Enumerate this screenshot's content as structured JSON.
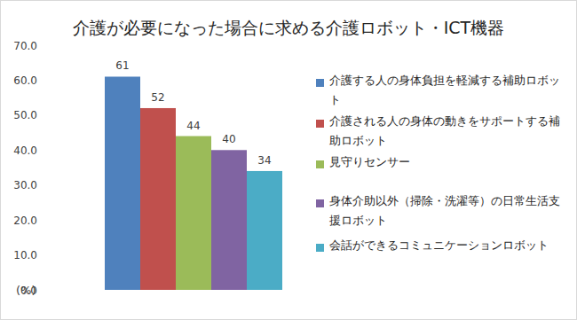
{
  "chart_data": {
    "type": "bar",
    "title": "介護が必要になった場合に求める介護ロボット・ICT機器",
    "y_label": "(%)",
    "categories": [
      "介護する人の身体負担を軽減する補助ロボット",
      "介護される人の身体の動きをサポートする補助ロボット",
      "見守りセンサー",
      "身体介助以外（掃除・洗濯等）の日常生活支援ロボット",
      "会話ができるコミュニケーションロボット"
    ],
    "values": [
      61,
      52,
      44,
      40,
      34
    ],
    "colors": [
      "#4f81bd",
      "#c0504d",
      "#9bbb59",
      "#8064a2",
      "#4bacc6"
    ],
    "ylim": [
      0,
      70
    ],
    "yticks": [
      {
        "value": 0,
        "label": "0.0"
      },
      {
        "value": 10,
        "label": "10.0"
      },
      {
        "value": 20,
        "label": "20.0"
      },
      {
        "value": 30,
        "label": "30.0"
      },
      {
        "value": 40,
        "label": "40.0"
      },
      {
        "value": 50,
        "label": "50.0"
      },
      {
        "value": 60,
        "label": "60.0"
      },
      {
        "value": 70,
        "label": "70.0"
      }
    ],
    "grid": false,
    "data_labels": true,
    "tick_labels": "y",
    "legend": "right"
  }
}
